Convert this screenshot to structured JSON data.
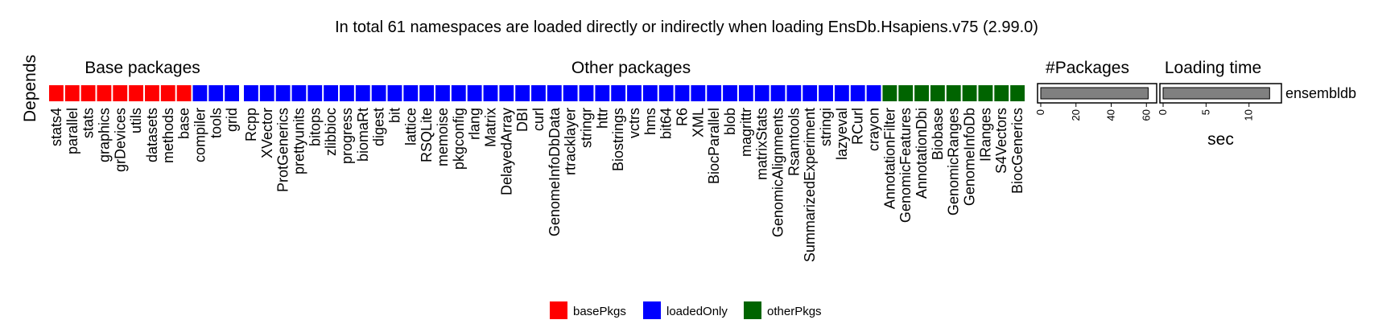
{
  "chart_data": {
    "type": "heatmap",
    "title": "In total 61 namespaces are loaded directly or indirectly when loading EnsDb.Hsapiens.v75 (2.99.0)",
    "row_label": "Depends",
    "section_titles": {
      "base": "Base packages",
      "other": "Other packages",
      "count": "#Packages",
      "time": "Loading time"
    },
    "row_name": "ensembldb",
    "colors": {
      "basePkgs": "#ff0000",
      "loadedOnly": "#0000ff",
      "otherPkgs": "#006400",
      "bar": "#808080"
    },
    "legend": [
      {
        "key": "basePkgs",
        "label": "basePkgs"
      },
      {
        "key": "loadedOnly",
        "label": "loadedOnly"
      },
      {
        "key": "otherPkgs",
        "label": "otherPkgs"
      }
    ],
    "base_packages": [
      {
        "name": "stats4",
        "type": "basePkgs"
      },
      {
        "name": "parallel",
        "type": "basePkgs"
      },
      {
        "name": "stats",
        "type": "basePkgs"
      },
      {
        "name": "graphics",
        "type": "basePkgs"
      },
      {
        "name": "grDevices",
        "type": "basePkgs"
      },
      {
        "name": "utils",
        "type": "basePkgs"
      },
      {
        "name": "datasets",
        "type": "basePkgs"
      },
      {
        "name": "methods",
        "type": "basePkgs"
      },
      {
        "name": "base",
        "type": "basePkgs"
      },
      {
        "name": "compiler",
        "type": "loadedOnly"
      },
      {
        "name": "tools",
        "type": "loadedOnly"
      },
      {
        "name": "grid",
        "type": "loadedOnly"
      }
    ],
    "other_packages": [
      {
        "name": "Rcpp",
        "type": "loadedOnly"
      },
      {
        "name": "XVector",
        "type": "loadedOnly"
      },
      {
        "name": "ProtGenerics",
        "type": "loadedOnly"
      },
      {
        "name": "prettyunits",
        "type": "loadedOnly"
      },
      {
        "name": "bitops",
        "type": "loadedOnly"
      },
      {
        "name": "zlibbioc",
        "type": "loadedOnly"
      },
      {
        "name": "progress",
        "type": "loadedOnly"
      },
      {
        "name": "biomaRt",
        "type": "loadedOnly"
      },
      {
        "name": "digest",
        "type": "loadedOnly"
      },
      {
        "name": "bit",
        "type": "loadedOnly"
      },
      {
        "name": "lattice",
        "type": "loadedOnly"
      },
      {
        "name": "RSQLite",
        "type": "loadedOnly"
      },
      {
        "name": "memoise",
        "type": "loadedOnly"
      },
      {
        "name": "pkgconfig",
        "type": "loadedOnly"
      },
      {
        "name": "rlang",
        "type": "loadedOnly"
      },
      {
        "name": "Matrix",
        "type": "loadedOnly"
      },
      {
        "name": "DelayedArray",
        "type": "loadedOnly"
      },
      {
        "name": "DBI",
        "type": "loadedOnly"
      },
      {
        "name": "curl",
        "type": "loadedOnly"
      },
      {
        "name": "GenomeInfoDbData",
        "type": "loadedOnly"
      },
      {
        "name": "rtracklayer",
        "type": "loadedOnly"
      },
      {
        "name": "stringr",
        "type": "loadedOnly"
      },
      {
        "name": "httr",
        "type": "loadedOnly"
      },
      {
        "name": "Biostrings",
        "type": "loadedOnly"
      },
      {
        "name": "vctrs",
        "type": "loadedOnly"
      },
      {
        "name": "hms",
        "type": "loadedOnly"
      },
      {
        "name": "bit64",
        "type": "loadedOnly"
      },
      {
        "name": "R6",
        "type": "loadedOnly"
      },
      {
        "name": "XML",
        "type": "loadedOnly"
      },
      {
        "name": "BiocParallel",
        "type": "loadedOnly"
      },
      {
        "name": "blob",
        "type": "loadedOnly"
      },
      {
        "name": "magrittr",
        "type": "loadedOnly"
      },
      {
        "name": "matrixStats",
        "type": "loadedOnly"
      },
      {
        "name": "GenomicAlignments",
        "type": "loadedOnly"
      },
      {
        "name": "Rsamtools",
        "type": "loadedOnly"
      },
      {
        "name": "SummarizedExperiment",
        "type": "loadedOnly"
      },
      {
        "name": "stringi",
        "type": "loadedOnly"
      },
      {
        "name": "lazyeval",
        "type": "loadedOnly"
      },
      {
        "name": "RCurl",
        "type": "loadedOnly"
      },
      {
        "name": "crayon",
        "type": "loadedOnly"
      },
      {
        "name": "AnnotationFilter",
        "type": "otherPkgs"
      },
      {
        "name": "GenomicFeatures",
        "type": "otherPkgs"
      },
      {
        "name": "AnnotationDbi",
        "type": "otherPkgs"
      },
      {
        "name": "Biobase",
        "type": "otherPkgs"
      },
      {
        "name": "GenomicRanges",
        "type": "otherPkgs"
      },
      {
        "name": "GenomeInfoDb",
        "type": "otherPkgs"
      },
      {
        "name": "IRanges",
        "type": "otherPkgs"
      },
      {
        "name": "S4Vectors",
        "type": "otherPkgs"
      },
      {
        "name": "BiocGenerics",
        "type": "otherPkgs"
      }
    ],
    "packages_count": {
      "value": 61,
      "xlim": [
        0,
        64
      ],
      "ticks": [
        0,
        20,
        40,
        60
      ]
    },
    "loading_time": {
      "value": 12.4,
      "xlim": [
        0,
        13.4
      ],
      "ticks": [
        0,
        5,
        10
      ],
      "xlabel": "sec"
    }
  }
}
